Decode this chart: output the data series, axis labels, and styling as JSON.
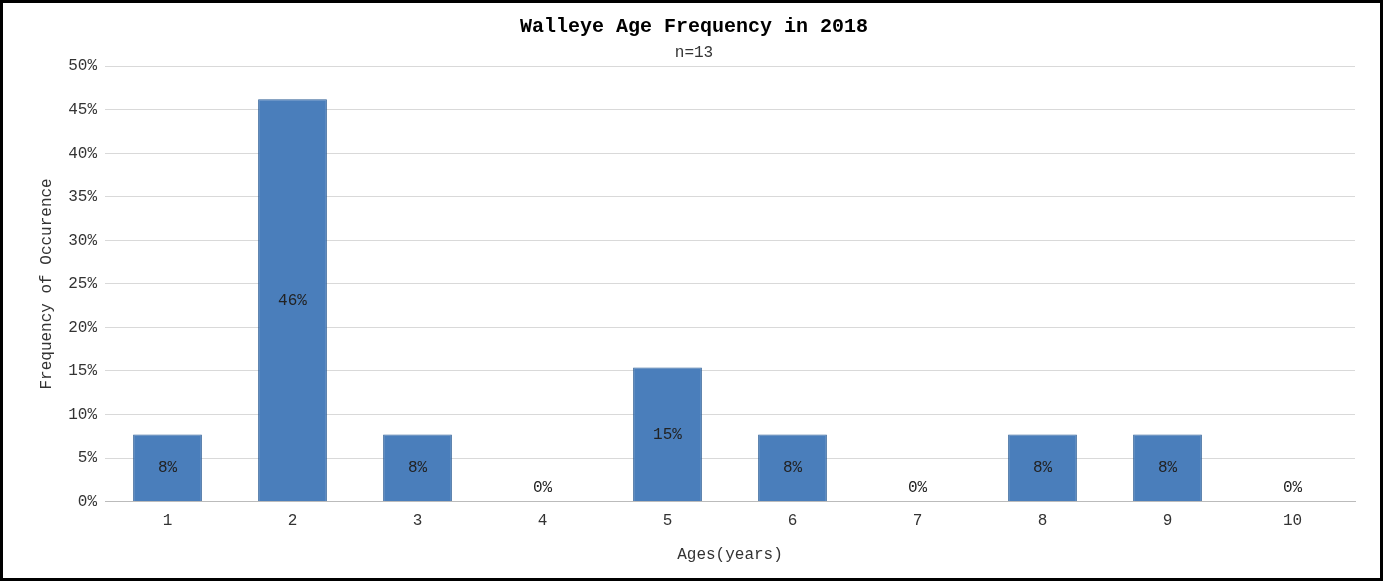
{
  "chart_data": {
    "type": "bar",
    "title": "Walleye Age Frequency in 2018",
    "subtitle": "n=13",
    "xlabel": "Ages(years)",
    "ylabel": "Frequency of Occurence",
    "categories": [
      "1",
      "2",
      "3",
      "4",
      "5",
      "6",
      "7",
      "8",
      "9",
      "10"
    ],
    "values": [
      7.7,
      46.2,
      7.7,
      0,
      15.4,
      7.7,
      0,
      7.7,
      7.7,
      0
    ],
    "value_labels": [
      "8%",
      "46%",
      "8%",
      "0%",
      "15%",
      "8%",
      "0%",
      "8%",
      "8%",
      "0%"
    ],
    "color": "#4a7ebb",
    "ylim": [
      0,
      50
    ],
    "yticks": [
      {
        "value": 0,
        "label": "0%"
      },
      {
        "value": 5,
        "label": "5%"
      },
      {
        "value": 10,
        "label": "10%"
      },
      {
        "value": 15,
        "label": "15%"
      },
      {
        "value": 20,
        "label": "20%"
      },
      {
        "value": 25,
        "label": "25%"
      },
      {
        "value": 30,
        "label": "30%"
      },
      {
        "value": 35,
        "label": "35%"
      },
      {
        "value": 40,
        "label": "40%"
      },
      {
        "value": 45,
        "label": "45%"
      },
      {
        "value": 50,
        "label": "50%"
      }
    ],
    "grid": "y",
    "legend": false
  }
}
